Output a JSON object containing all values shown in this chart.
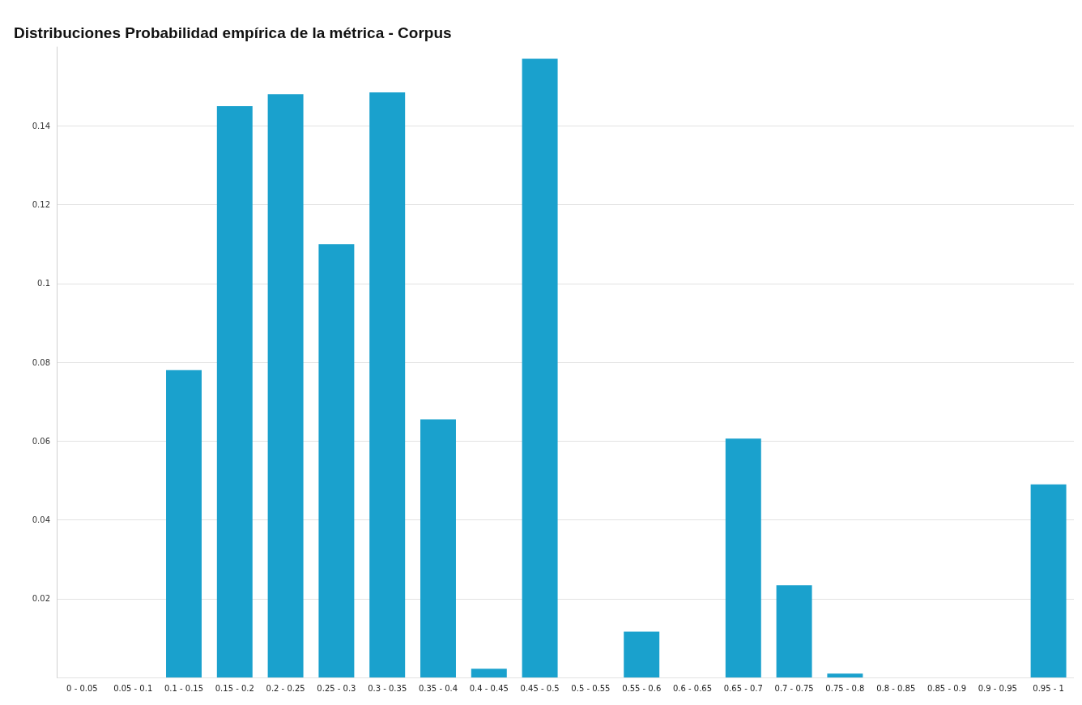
{
  "chart_data": {
    "type": "bar",
    "title": "Distribuciones Probabilidad empírica de la métrica - Corpus",
    "categories": [
      "0 - 0.05",
      "0.05 - 0.1",
      "0.1 - 0.15",
      "0.15 - 0.2",
      "0.2 - 0.25",
      "0.25 - 0.3",
      "0.3 - 0.35",
      "0.35 - 0.4",
      "0.4 - 0.45",
      "0.45 - 0.5",
      "0.5 - 0.55",
      "0.55 - 0.6",
      "0.6 - 0.65",
      "0.65 - 0.7",
      "0.7 - 0.75",
      "0.75 - 0.8",
      "0.8 - 0.85",
      "0.85 - 0.9",
      "0.9 - 0.95",
      "0.95 - 1"
    ],
    "values": [
      0,
      0,
      0.078,
      0.145,
      0.148,
      0.11,
      0.1485,
      0.0655,
      0.0022,
      0.157,
      0,
      0.0116,
      0,
      0.0606,
      0.0234,
      0.001,
      0,
      0,
      0,
      0.049
    ],
    "color": "#1aa1cd",
    "ylim": [
      0,
      0.16
    ],
    "yticks": [
      {
        "value": 0,
        "label": null
      },
      0.02,
      0.04,
      0.06,
      0.08,
      0.1,
      0.12,
      0.14
    ],
    "grid": "y"
  }
}
